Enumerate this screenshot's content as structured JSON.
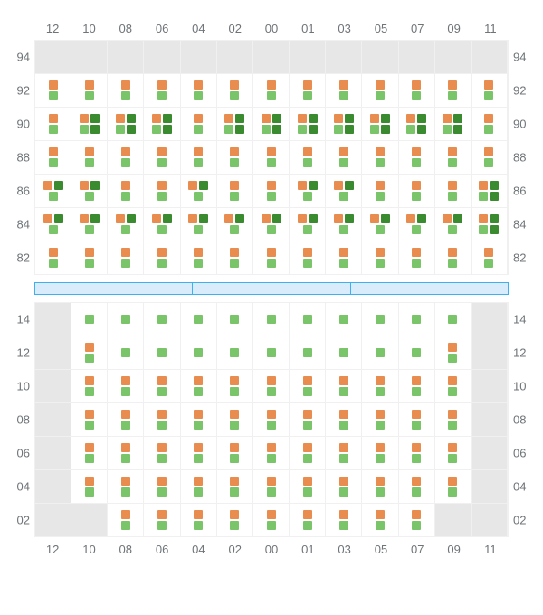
{
  "palette": {
    "orange": "#e88c4f",
    "green": "#7ac46a",
    "darkgreen": "#3a8a2f",
    "empty": "#e7e7e7",
    "divider_fill": "#d8ecfb",
    "divider_border": "#3eb0f0",
    "grid_line": "#f0f0f0",
    "text": "#6e7478"
  },
  "columns": [
    "12",
    "10",
    "08",
    "06",
    "04",
    "02",
    "00",
    "01",
    "03",
    "05",
    "07",
    "09",
    "11"
  ],
  "top": {
    "row_labels": [
      "94",
      "92",
      "90",
      "88",
      "86",
      "84",
      "82"
    ],
    "cells": [
      [
        "E",
        "E",
        "E",
        "E",
        "E",
        "E",
        "E",
        "E",
        "E",
        "E",
        "E",
        "E",
        "E"
      ],
      [
        "OG",
        "OG",
        "OG",
        "OG",
        "OG",
        "OG",
        "OG",
        "OG",
        "OG",
        "OG",
        "OG",
        "OG",
        "OG"
      ],
      [
        "OG",
        "OD_GD",
        "OD_GD",
        "OD_GD",
        "OG",
        "OD_GD",
        "OD_GD",
        "OD_GD",
        "OD_GD",
        "OD_GD",
        "OD_GD",
        "OD_GD",
        "OG"
      ],
      [
        "OG",
        "OG",
        "OG",
        "OG",
        "OG",
        "OG",
        "OG",
        "OG",
        "OG",
        "OG",
        "OG",
        "OG",
        "OG"
      ],
      [
        "OD_G",
        "OD_G",
        "OG",
        "OG",
        "OD_G",
        "OG",
        "OG",
        "OD_G",
        "OD_G",
        "OG",
        "OG",
        "OG",
        "OD_GD"
      ],
      [
        "OD_G",
        "OD_G",
        "OD_G",
        "OD_G",
        "OD_G",
        "OD_G",
        "OD_G",
        "OD_G",
        "OD_G",
        "OD_G",
        "OD_G",
        "OD_G",
        "OD_GD"
      ],
      [
        "OG",
        "OG",
        "OG",
        "OG",
        "OG",
        "OG",
        "OG",
        "OG",
        "OG",
        "OG",
        "OG",
        "OG",
        "OG"
      ]
    ]
  },
  "divider_segments": 3,
  "bottom": {
    "row_labels": [
      "14",
      "12",
      "10",
      "08",
      "06",
      "04",
      "02"
    ],
    "cells": [
      [
        "E",
        "G_",
        "G_",
        "G_",
        "G_",
        "G_",
        "G_",
        "G_",
        "G_",
        "G_",
        "G_",
        "G_",
        "E"
      ],
      [
        "E",
        "OG",
        "G_",
        "G_",
        "G_",
        "G_",
        "G_",
        "G_",
        "G_",
        "G_",
        "G_",
        "OG",
        "E"
      ],
      [
        "E",
        "OG",
        "OG",
        "OG",
        "OG",
        "OG",
        "OG",
        "OG",
        "OG",
        "OG",
        "OG",
        "OG",
        "E"
      ],
      [
        "E",
        "OG",
        "OG",
        "OG",
        "OG",
        "OG",
        "OG",
        "OG",
        "OG",
        "OG",
        "OG",
        "OG",
        "E"
      ],
      [
        "E",
        "OG",
        "OG",
        "OG",
        "OG",
        "OG",
        "OG",
        "OG",
        "OG",
        "OG",
        "OG",
        "OG",
        "E"
      ],
      [
        "E",
        "OG",
        "OG",
        "OG",
        "OG",
        "OG",
        "OG",
        "OG",
        "OG",
        "OG",
        "OG",
        "OG",
        "E"
      ],
      [
        "E",
        "E",
        "OG",
        "OG",
        "OG",
        "OG",
        "OG",
        "OG",
        "OG",
        "OG",
        "OG",
        "E",
        "E"
      ]
    ]
  },
  "cell_types": {
    "E": {
      "empty": true
    },
    "OG": {
      "top": [
        "orange"
      ],
      "bottom": [
        "green"
      ]
    },
    "G_": {
      "top": [
        "green"
      ]
    },
    "OD_G": {
      "top": [
        "orange",
        "darkgreen"
      ],
      "bottom": [
        "green"
      ]
    },
    "OD_GD": {
      "top": [
        "orange",
        "darkgreen"
      ],
      "bottom": [
        "green",
        "darkgreen"
      ]
    }
  }
}
